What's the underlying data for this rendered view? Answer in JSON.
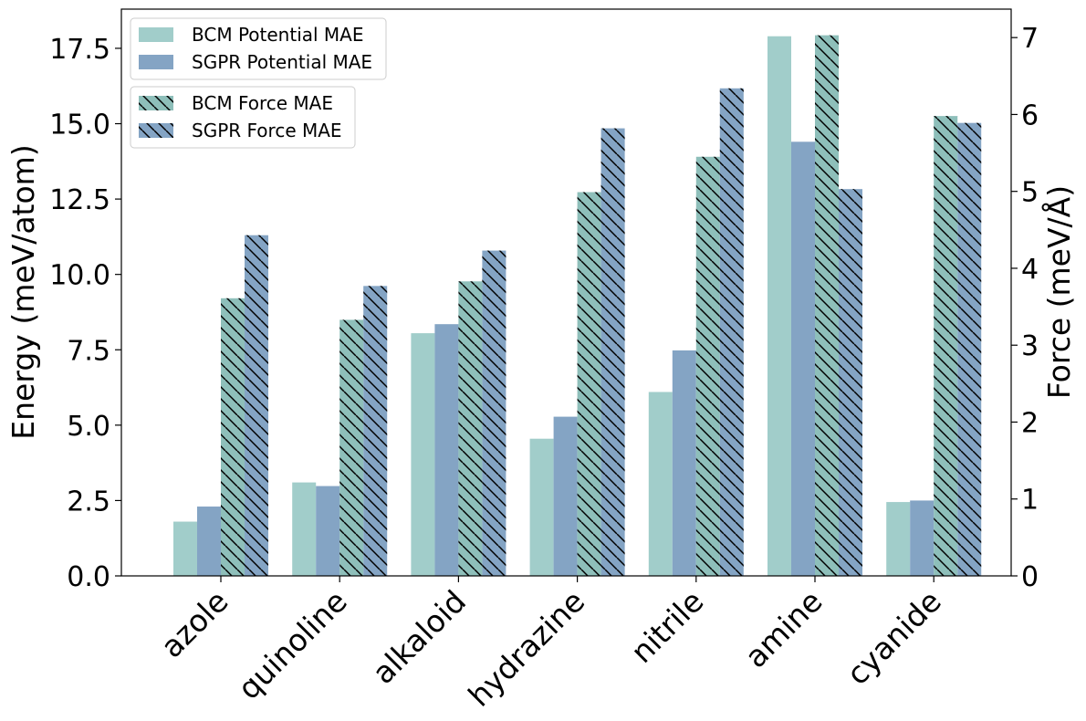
{
  "chart_data": {
    "type": "bar",
    "categories": [
      "azole",
      "quinoline",
      "alkaloid",
      "hydrazine",
      "nitrile",
      "amine",
      "cyanide"
    ],
    "left_axis": {
      "label": "Energy (meV/atom)",
      "ylim": [
        0,
        18.8
      ],
      "ticks": [
        "0.0",
        "2.5",
        "5.0",
        "7.5",
        "10.0",
        "12.5",
        "15.0",
        "17.5"
      ]
    },
    "right_axis": {
      "label": "Force (meV/Å)",
      "ylim": [
        0,
        7.37
      ],
      "ticks": [
        "0",
        "1",
        "2",
        "3",
        "4",
        "5",
        "6",
        "7"
      ]
    },
    "series": [
      {
        "name": "BCM Potential MAE",
        "axis": "left",
        "color": "#a1cdca",
        "hatch": false,
        "values": [
          1.8,
          3.1,
          8.05,
          4.55,
          6.1,
          17.9,
          2.45
        ]
      },
      {
        "name": "SGPR Potential MAE",
        "axis": "left",
        "color": "#84a4c4",
        "hatch": false,
        "values": [
          2.3,
          2.98,
          8.35,
          5.28,
          7.48,
          14.4,
          2.5
        ]
      },
      {
        "name": "BCM Force MAE",
        "axis": "right",
        "color": "#8ebfba",
        "hatch": true,
        "values": [
          3.61,
          3.33,
          3.83,
          4.99,
          5.45,
          7.03,
          5.98
        ]
      },
      {
        "name": "SGPR Force MAE",
        "axis": "right",
        "color": "#84a4c4",
        "hatch": true,
        "values": [
          4.43,
          3.77,
          4.23,
          5.82,
          6.34,
          5.03,
          5.89
        ]
      }
    ],
    "legend": [
      {
        "placement": "top-left",
        "entries": [
          "BCM Potential MAE",
          "SGPR Potential MAE"
        ]
      },
      {
        "placement": "top-left",
        "entries": [
          "BCM Force MAE",
          "SGPR Force MAE"
        ]
      }
    ],
    "grid": false
  }
}
